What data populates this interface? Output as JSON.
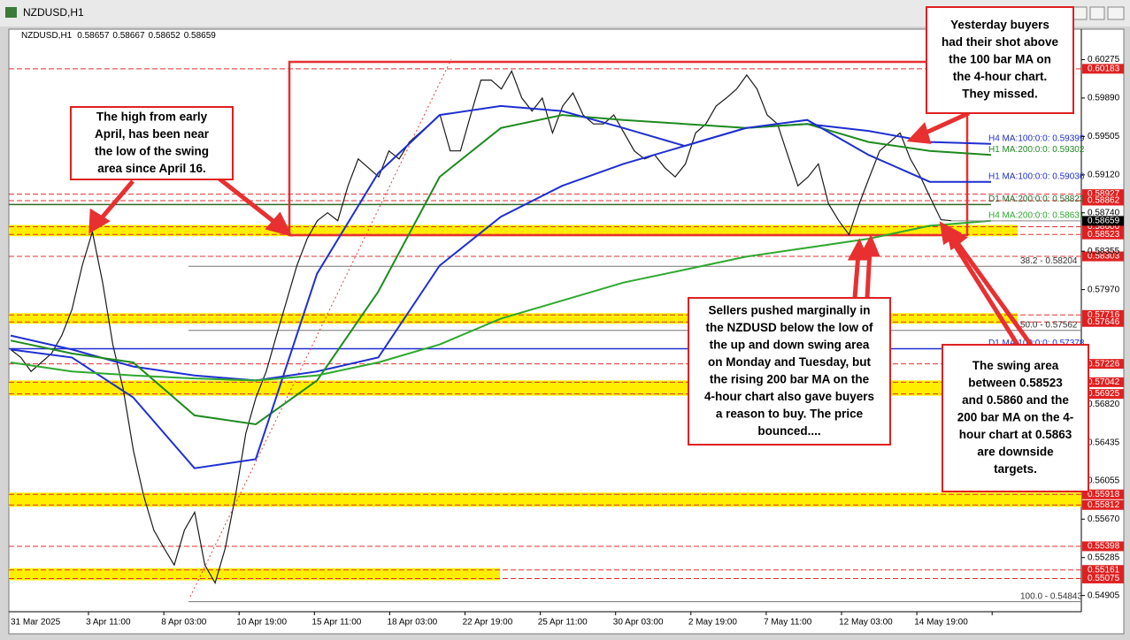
{
  "chart_data": {
    "type": "line",
    "title": "NZDUSD,H1",
    "ohlc": [
      0.58657,
      0.58667,
      0.58652,
      0.58659
    ],
    "ylim": [
      0.5476,
      0.6058
    ],
    "yticks": [
      0.60275,
      {
        "value": 0.5989,
        "label": "0.59890"
      },
      0.59505,
      {
        "value": 0.5912,
        "label": "0.59120"
      },
      {
        "value": 0.5874,
        "label": "0.58740"
      },
      0.58355,
      {
        "value": 0.5797,
        "label": "0.57970"
      },
      {
        "value": 0.5682,
        "label": "0.56820"
      },
      0.56435,
      0.56055,
      {
        "value": 0.5567,
        "label": "0.55670"
      },
      0.55285,
      0.54905
    ],
    "time_labels": [
      "31 Mar 2025",
      "3 Apr 11:00",
      "8 Apr 03:00",
      "10 Apr 19:00",
      "15 Apr 11:00",
      "18 Apr 03:00",
      "22 Apr 19:00",
      "25 Apr 11:00",
      "30 Apr 03:00",
      "2 May 19:00",
      "7 May 11:00",
      "12 May 03:00",
      "14 May 19:00"
    ],
    "current": 0.58659,
    "series": [
      {
        "color": "#1a1a1a",
        "values": [
          0.5737,
          0.5729,
          0.5715,
          0.5724,
          0.5733,
          0.5751,
          0.5777,
          0.5821,
          0.5855,
          0.5804,
          0.5742,
          0.5698,
          0.5636,
          0.5591,
          0.5556,
          0.5538,
          0.5521,
          0.5556,
          0.5574,
          0.5521,
          0.5503,
          0.5538,
          0.5591,
          0.5653,
          0.5689,
          0.5715,
          0.5751,
          0.5786,
          0.5821,
          0.5848,
          0.5866,
          0.5874,
          0.5866,
          0.5901,
          0.5928,
          0.5919,
          0.591,
          0.5936,
          0.5928,
          0.5945,
          0.5954,
          0.5963,
          0.5972,
          0.5936,
          0.5936,
          0.5972,
          0.6007,
          0.6007,
          0.5998,
          0.6016,
          0.5989,
          0.5976,
          0.5989,
          0.5954,
          0.5981,
          0.5994,
          0.5972,
          0.5963,
          0.5963,
          0.5972,
          0.5954,
          0.5936,
          0.5928,
          0.5932,
          0.5919,
          0.591,
          0.5923,
          0.5954,
          0.5963,
          0.5981,
          0.5989,
          0.5998,
          0.6012,
          0.5998,
          0.5972,
          0.5963,
          0.5932,
          0.5901,
          0.591,
          0.5923,
          0.5883,
          0.5866,
          0.5852,
          0.5883,
          0.591,
          0.5936,
          0.5945,
          0.5954,
          0.5928,
          0.591,
          0.5888,
          0.5867,
          0.5866
        ]
      },
      {
        "name": "H4 MA:100:0:0: 0.59399",
        "color": "#1f2fd0",
        "values": [
          0.5751,
          0.5737,
          0.572,
          0.5711,
          0.5706,
          0.5715,
          0.5729,
          0.5821,
          0.587,
          0.5901,
          0.5923,
          0.5941,
          0.5959,
          0.5963,
          0.5956,
          0.5945,
          0.5943
        ]
      },
      {
        "name": "H1 MA:200:0:0: 0.59302",
        "color": "#1e8a1e",
        "values": [
          0.5746,
          0.5733,
          0.5724,
          0.5671,
          0.5662,
          0.5706,
          0.5795,
          0.591,
          0.5959,
          0.5972,
          0.5967,
          0.5963,
          0.5959,
          0.5963,
          0.5945,
          0.5936,
          0.5932
        ]
      },
      {
        "name": "H1 MA:100:0:0: 0.59036",
        "color": "#1f2fd0",
        "values": [
          0.5737,
          0.5729,
          0.5689,
          0.5618,
          0.5627,
          0.5813,
          0.5914,
          0.5972,
          0.5981,
          0.5976,
          0.5959,
          0.5941,
          0.5959,
          0.5967,
          0.5932,
          0.5905,
          0.5905
        ]
      },
      {
        "name": "H4 MA:200:0:0: 0.58631",
        "color": "#2ea82e",
        "values": [
          0.5724,
          0.5715,
          0.5711,
          0.5708,
          0.5706,
          0.5711,
          0.5724,
          0.5742,
          0.5768,
          0.5786,
          0.5804,
          0.5817,
          0.583,
          0.5839,
          0.5848,
          0.5861,
          0.5866
        ]
      }
    ],
    "flat_mas": [
      {
        "name": "D1 MA:200:0:0: 0.58823",
        "value": 0.58823,
        "color": "#2a6a2a"
      },
      {
        "name": "D1 MA:100:0:0: 0.57378",
        "value": 0.57378,
        "color": "#1f2fd0"
      }
    ],
    "fib": [
      {
        "label": "38.2 - 0.58204",
        "value": 0.58204
      },
      {
        "label": "50.0 - 0.57562",
        "value": 0.57562
      },
      {
        "label": "100.0 - 0.54843",
        "value": 0.54843
      }
    ],
    "lines": [
      0.60183,
      0.58927,
      0.58862,
      0.58303,
      0.57226,
      0.55398
    ],
    "zones": [
      {
        "high": {
          "value": 0.586,
          "label": "0.58600"
        },
        "low": 0.58523
      },
      {
        "high": 0.57716,
        "low": 0.57646
      },
      {
        "high": 0.57042,
        "low": 0.56925
      },
      {
        "high": 0.55918,
        "low": 0.55812
      },
      {
        "high": 0.55161,
        "low": 0.55075
      }
    ],
    "annotations": [
      {
        "lines": [
          "The high from early",
          "April, has been near",
          "the low of the swing",
          "area since April 16."
        ]
      },
      {
        "lines": [
          "Yesterday buyers",
          "had their shot above",
          "the 100 bar MA on",
          "the 4-hour chart.",
          "They missed."
        ]
      },
      {
        "lines": [
          "Sellers pushed marginally in",
          "the NZDUSD below the low of",
          "the up and down swing area",
          "on Monday and Tuesday, but",
          "the rising 200 bar MA on the",
          "4-hour chart also gave buyers",
          "a reason to buy.  The price",
          "bounced...."
        ]
      },
      {
        "lines": [
          "The swing area",
          "between 0.58523",
          "and 0.5860 and the",
          "200 bar MA on the 4-",
          "hour chart at 0.5863",
          "are downside",
          "targets."
        ]
      }
    ]
  }
}
